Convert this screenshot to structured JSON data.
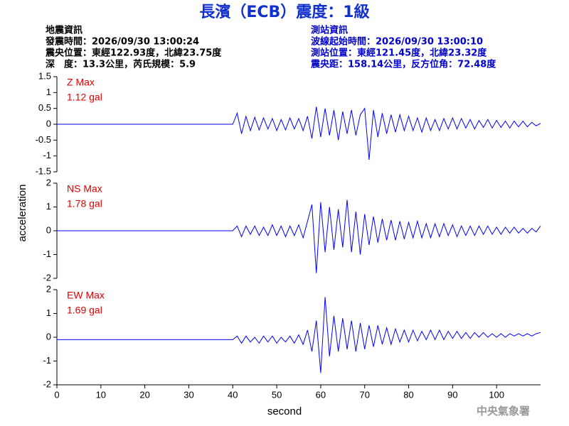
{
  "chart_data": {
    "type": "line",
    "title": "長濱（ECB）震度：1級",
    "event_info": [
      "地震資訊",
      "發震時間：2026/09/30 13:00:24",
      "震央位置：東經122.93度，北緯23.75度",
      "深　度：13.3公里，芮氏規模：5.9"
    ],
    "station_info": [
      "測站資訊",
      "波線起始時間：2026/09/30 13:00:10",
      "測站位置：東經121.45度，北緯23.32度",
      "震央距：158.14公里，反方位角：72.48度"
    ],
    "source": "中央氣象署",
    "xlabel": "second",
    "ylabel": "acceleration",
    "xlim": [
      0,
      110
    ],
    "xticks": [
      0,
      10,
      20,
      30,
      40,
      50,
      60,
      70,
      80,
      90,
      100
    ],
    "x": [
      0,
      10,
      20,
      30,
      40,
      41,
      42,
      43,
      44,
      45,
      46,
      47,
      48,
      49,
      50,
      51,
      52,
      53,
      54,
      55,
      56,
      57,
      58,
      59,
      60,
      61,
      62,
      63,
      64,
      65,
      66,
      67,
      68,
      69,
      70,
      71,
      72,
      73,
      74,
      75,
      76,
      77,
      78,
      79,
      80,
      81,
      82,
      83,
      84,
      85,
      86,
      87,
      88,
      89,
      90,
      91,
      92,
      93,
      94,
      95,
      96,
      97,
      98,
      99,
      100,
      101,
      102,
      103,
      104,
      105,
      106,
      107,
      108,
      109,
      110
    ],
    "panels": [
      {
        "component": "Z Max",
        "peak": "1.12 gal",
        "color": "#0000ff",
        "label_color": "#e00000",
        "ylim": [
          -1.5,
          1.5
        ],
        "yticks": [
          -1.5,
          -1,
          -0.5,
          0,
          0.5,
          1,
          1.5
        ],
        "values": [
          0,
          0,
          0,
          0,
          0,
          0.35,
          -0.3,
          0.25,
          -0.2,
          0.22,
          -0.18,
          0.2,
          -0.15,
          0.18,
          -0.2,
          0.15,
          -0.18,
          0.2,
          -0.15,
          0.18,
          -0.2,
          0.25,
          -0.45,
          0.55,
          -0.4,
          0.5,
          -0.35,
          0.45,
          -0.5,
          0.4,
          -0.3,
          0.45,
          -0.35,
          0.3,
          0.5,
          -1.12,
          0.45,
          -0.4,
          0.35,
          -0.3,
          0.3,
          -0.25,
          0.3,
          -0.2,
          0.25,
          -0.2,
          0.2,
          -0.25,
          0.2,
          -0.2,
          0.15,
          -0.2,
          0.18,
          -0.15,
          0.2,
          -0.15,
          0.18,
          -0.12,
          0.15,
          -0.15,
          0.12,
          -0.1,
          0.15,
          -0.12,
          0.12,
          -0.1,
          0.1,
          -0.12,
          0.1,
          -0.08,
          0.1,
          -0.08,
          0.06,
          -0.05,
          0.03
        ]
      },
      {
        "component": "NS Max",
        "peak": "1.78 gal",
        "color": "#0000ff",
        "label_color": "#e00000",
        "ylim": [
          -2,
          2
        ],
        "yticks": [
          -2,
          -1,
          0,
          1,
          2
        ],
        "values": [
          0,
          0,
          0,
          0,
          0,
          0.2,
          -0.25,
          0.2,
          -0.15,
          0.2,
          -0.2,
          0.15,
          -0.2,
          0.25,
          -0.2,
          0.2,
          -0.25,
          0.2,
          -0.2,
          0.25,
          -0.3,
          0.4,
          1.1,
          -1.78,
          1.2,
          -0.9,
          1.0,
          -0.8,
          0.9,
          -0.7,
          1.3,
          -0.9,
          0.8,
          -1.0,
          0.7,
          -0.6,
          0.6,
          -0.5,
          0.5,
          -0.4,
          0.45,
          -0.4,
          0.4,
          -0.35,
          0.35,
          -0.3,
          0.4,
          -0.3,
          0.3,
          -0.3,
          0.3,
          -0.25,
          0.3,
          -0.2,
          0.25,
          -0.25,
          0.2,
          -0.2,
          0.2,
          -0.2,
          0.2,
          -0.15,
          0.2,
          -0.15,
          0.15,
          -0.15,
          0.15,
          -0.1,
          0.15,
          -0.1,
          0.1,
          -0.1,
          0.1,
          -0.05,
          0.2
        ]
      },
      {
        "component": "EW Max",
        "peak": "1.69 gal",
        "color": "#0000ff",
        "label_color": "#e00000",
        "ylim": [
          -2,
          2
        ],
        "yticks": [
          -2,
          -1,
          0,
          1,
          2
        ],
        "values": [
          -0.1,
          -0.1,
          -0.1,
          -0.1,
          -0.1,
          0.05,
          -0.25,
          0.05,
          -0.2,
          0.0,
          -0.25,
          0.05,
          -0.2,
          0.05,
          -0.25,
          0.0,
          -0.2,
          0.05,
          -0.25,
          0.1,
          -0.3,
          0.3,
          -0.6,
          0.7,
          -1.5,
          1.69,
          -0.8,
          0.9,
          -0.6,
          0.8,
          -0.5,
          0.7,
          -0.6,
          0.6,
          -0.5,
          0.5,
          -0.4,
          0.5,
          -0.3,
          0.4,
          -0.3,
          0.35,
          -0.2,
          0.3,
          -0.2,
          0.3,
          -0.15,
          0.25,
          -0.1,
          0.3,
          -0.1,
          0.3,
          -0.1,
          0.25,
          -0.05,
          0.25,
          -0.05,
          0.2,
          -0.05,
          0.2,
          0.0,
          0.2,
          0.0,
          0.15,
          0.0,
          0.15,
          0.0,
          0.15,
          0.05,
          0.15,
          0.05,
          0.15,
          0.05,
          0.15,
          0.2
        ]
      }
    ]
  }
}
